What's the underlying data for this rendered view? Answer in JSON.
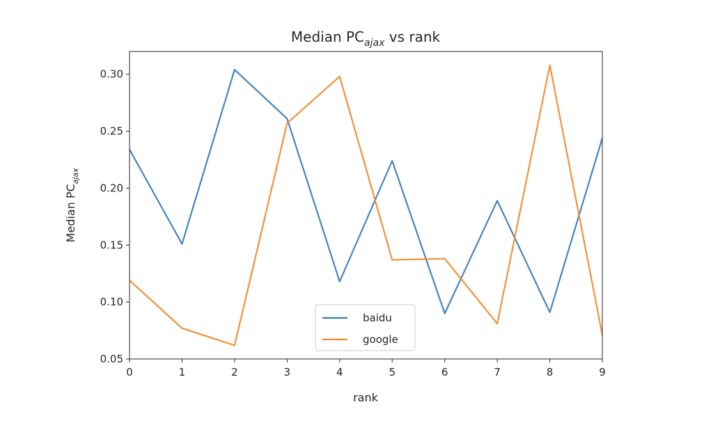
{
  "chart_data": {
    "type": "line",
    "title": "Median PC",
    "title_sub": "ajax",
    "title_tail": " vs rank",
    "xlabel": "rank",
    "ylabel": "Median PC",
    "ylabel_sub": "ajax",
    "x": [
      0,
      1,
      2,
      3,
      4,
      5,
      6,
      7,
      8,
      9
    ],
    "xlim": [
      0,
      9
    ],
    "ylim": [
      0.05,
      0.32
    ],
    "xticks": [
      "0",
      "1",
      "2",
      "3",
      "4",
      "5",
      "6",
      "7",
      "8",
      "9"
    ],
    "yticks": [
      0.05,
      0.1,
      0.15,
      0.2,
      0.25,
      0.3
    ],
    "ytick_labels": [
      "0.05",
      "0.10",
      "0.15",
      "0.20",
      "0.25",
      "0.30"
    ],
    "grid": false,
    "legend_position": "lower-center",
    "series": [
      {
        "name": "baidu",
        "color": "#3a7ebf",
        "values": [
          0.234,
          0.151,
          0.304,
          0.261,
          0.118,
          0.224,
          0.09,
          0.189,
          0.091,
          0.244
        ]
      },
      {
        "name": "google",
        "color": "#f38a2e",
        "values": [
          0.119,
          0.077,
          0.062,
          0.257,
          0.298,
          0.137,
          0.138,
          0.081,
          0.308,
          0.071
        ]
      }
    ]
  }
}
